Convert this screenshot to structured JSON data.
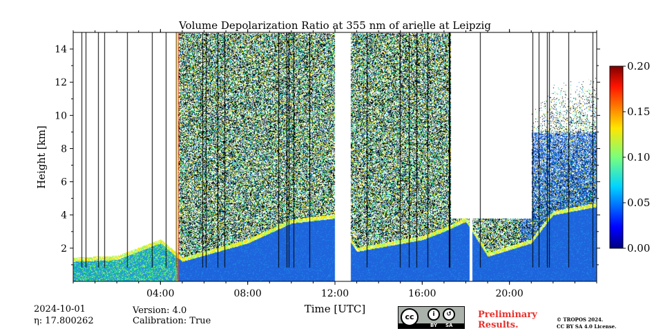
{
  "chart_data": {
    "type": "heatmap",
    "title": "Volume Depolarization Ratio at 355 nm of arielle at Leipzig",
    "xlabel": "Time [UTC]",
    "ylabel": "Height [km]",
    "x_range_hours": [
      0,
      24
    ],
    "y_range_km": [
      0,
      15
    ],
    "x_ticks": [
      {
        "value": 4,
        "label": "04:00"
      },
      {
        "value": 8,
        "label": "08:00"
      },
      {
        "value": 12,
        "label": "12:00"
      },
      {
        "value": 16,
        "label": "16:00"
      },
      {
        "value": 20,
        "label": "20:00"
      }
    ],
    "y_ticks": [
      {
        "value": 2,
        "label": "2"
      },
      {
        "value": 4,
        "label": "4"
      },
      {
        "value": 6,
        "label": "6"
      },
      {
        "value": 8,
        "label": "8"
      },
      {
        "value": 10,
        "label": "10"
      },
      {
        "value": 12,
        "label": "12"
      },
      {
        "value": 14,
        "label": "14"
      }
    ],
    "colorbar": {
      "range": [
        0.0,
        0.2
      ],
      "ticks": [
        {
          "value": 0.0,
          "label": "0.00"
        },
        {
          "value": 0.05,
          "label": "0.05"
        },
        {
          "value": 0.1,
          "label": "0.10"
        },
        {
          "value": 0.15,
          "label": "0.15"
        },
        {
          "value": 0.2,
          "label": "0.20"
        }
      ],
      "colormap": "jet"
    },
    "data_gaps_hours": [
      [
        12.0,
        12.7
      ],
      [
        18.15,
        18.3
      ]
    ],
    "approx_boundary_layer_top_km": [
      [
        0,
        1.2
      ],
      [
        2,
        1.3
      ],
      [
        4,
        2.3
      ],
      [
        5,
        1.2
      ],
      [
        8,
        2.3
      ],
      [
        10,
        3.5
      ],
      [
        12,
        3.8
      ],
      [
        13,
        1.8
      ],
      [
        16,
        2.5
      ],
      [
        17,
        3.0
      ],
      [
        18,
        3.6
      ],
      [
        19,
        1.5
      ],
      [
        21,
        2.3
      ],
      [
        22,
        4.0
      ],
      [
        24,
        4.5
      ]
    ],
    "colors": {
      "background": "#ffffff",
      "noise_black": "#000000",
      "low_depol": "#1e64dc",
      "mid_depol": "#00c8a0",
      "high_depol": "#ff2000"
    }
  },
  "meta": {
    "date": "2024-10-01",
    "eta": "η: 17.800262",
    "version": "Version: 4.0",
    "calibration": "Calibration: True",
    "preliminary_line1": "Preliminary",
    "preliminary_line2": "Results.",
    "copyright_line1": "© TROPOS 2024.",
    "copyright_line2": "CC BY SA 4.0 License.",
    "cc_badge": {
      "circle": "cc",
      "by_label": "BY",
      "sa_label": "SA"
    }
  }
}
